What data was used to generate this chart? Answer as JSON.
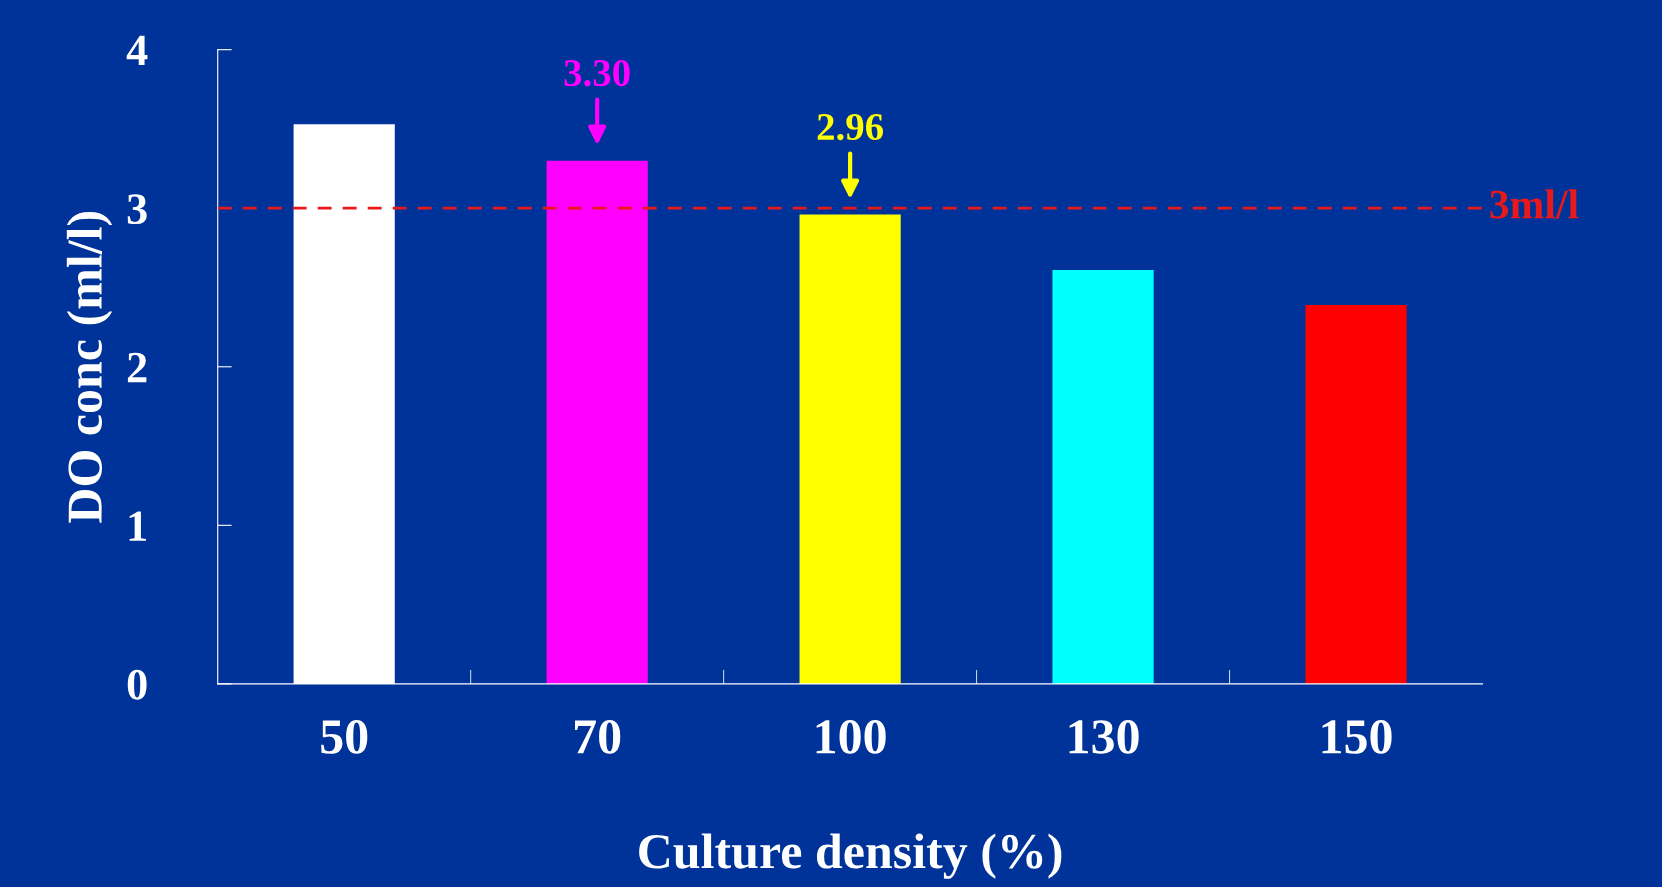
{
  "chart_data": {
    "type": "bar",
    "xlabel": "Culture density (%)",
    "ylabel": "DO conc (ml/l)",
    "categories": [
      "50",
      "70",
      "100",
      "130",
      "150"
    ],
    "values": [
      3.53,
      3.3,
      2.96,
      2.61,
      2.39
    ],
    "colors": [
      "#ffffff",
      "#ff00ff",
      "#ffff00",
      "#00ffff",
      "#ff0000"
    ],
    "value_labels": [
      null,
      "3.30",
      "2.96",
      null,
      null
    ],
    "ylim": [
      0,
      4
    ],
    "yticks": [
      0,
      1,
      2,
      3,
      4
    ],
    "grid": false,
    "legend": false,
    "ref_lines": [
      {
        "axis": "y",
        "value": 3,
        "label": "3ml/l",
        "color": "#e8191b",
        "line_style": "dashed"
      }
    ]
  }
}
